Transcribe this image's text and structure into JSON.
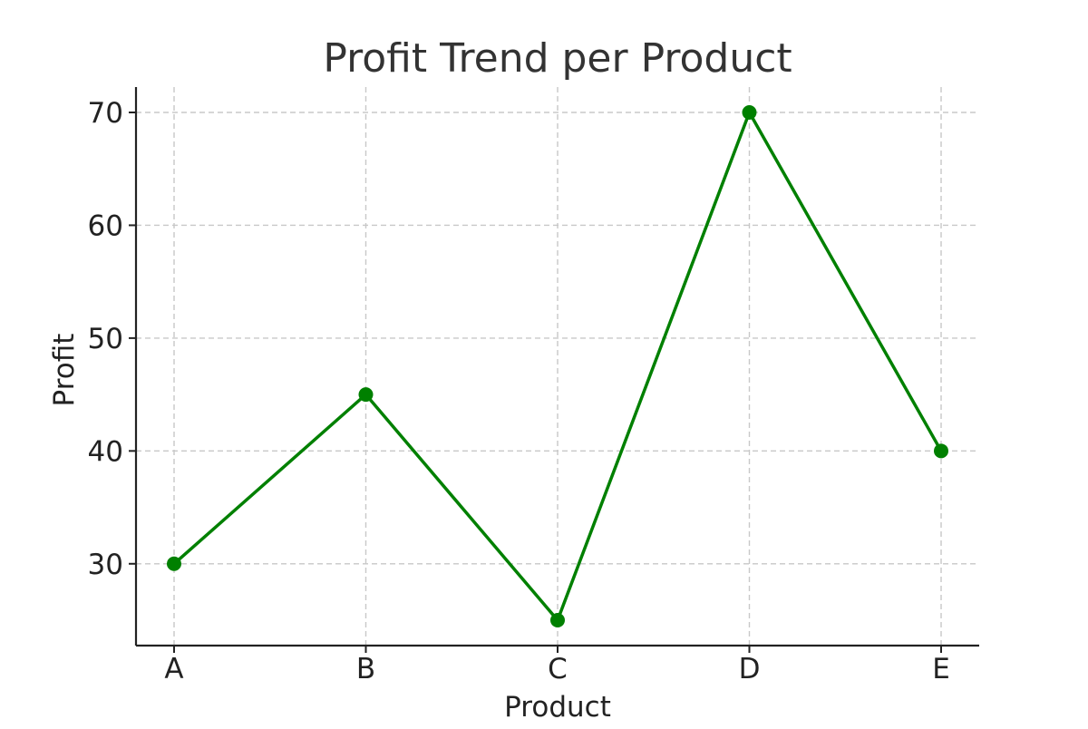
{
  "chart_data": {
    "type": "line",
    "title": "Profit Trend per Product",
    "xlabel": "Product",
    "ylabel": "Profit",
    "categories": [
      "A",
      "B",
      "C",
      "D",
      "E"
    ],
    "series": [
      {
        "values": [
          30,
          45,
          25,
          70,
          40
        ],
        "color": "#008000"
      }
    ],
    "yticks": [
      30,
      40,
      50,
      60,
      70
    ],
    "ylim": [
      22.75,
      72.25
    ],
    "grid": true,
    "grid_style": "dashed",
    "legend": "none"
  }
}
